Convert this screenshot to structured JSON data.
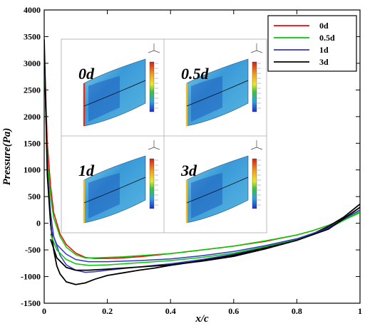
{
  "chart_data": {
    "type": "line",
    "xlabel": "x/c",
    "ylabel": "Pressure(Pa)",
    "xlim": [
      0,
      1
    ],
    "ylim": [
      -1500,
      4000
    ],
    "xticks": [
      "0",
      "0.2",
      "0.4",
      "0.6",
      "0.8",
      "1"
    ],
    "yticks": [
      "-1500",
      "-1000",
      "-500",
      "0",
      "500",
      "1000",
      "1500",
      "2000",
      "2500",
      "3000",
      "3500",
      "4000"
    ],
    "legend_position": "top-right",
    "series": [
      {
        "name": "0d",
        "color": "#ff0000",
        "x": [
          0.0,
          0.01,
          0.02,
          0.03,
          0.05,
          0.07,
          0.1,
          0.13,
          0.16,
          0.2,
          0.25,
          0.3,
          0.35,
          0.4,
          0.5,
          0.6,
          0.7,
          0.8,
          0.85,
          0.9,
          0.95,
          1.0
        ],
        "y": [
          3300,
          1500,
          700,
          200,
          -200,
          -400,
          -560,
          -640,
          -660,
          -660,
          -650,
          -630,
          -600,
          -570,
          -500,
          -430,
          -340,
          -220,
          -140,
          -40,
          80,
          250
        ]
      },
      {
        "name": "0.5d",
        "color": "#00cc00",
        "x": [
          0.0,
          0.01,
          0.02,
          0.03,
          0.05,
          0.07,
          0.1,
          0.13,
          0.16,
          0.2,
          0.25,
          0.3,
          0.35,
          0.4,
          0.5,
          0.6,
          0.7,
          0.8,
          0.85,
          0.9,
          0.95,
          1.0
        ],
        "y": [
          3000,
          1200,
          500,
          100,
          -250,
          -450,
          -590,
          -650,
          -650,
          -640,
          -630,
          -610,
          -590,
          -570,
          -500,
          -430,
          -330,
          -220,
          -140,
          -40,
          60,
          200
        ]
      },
      {
        "name": "1d",
        "color": "#3333cc",
        "x": [
          0.0,
          0.01,
          0.02,
          0.03,
          0.05,
          0.07,
          0.1,
          0.13,
          0.16,
          0.2,
          0.25,
          0.3,
          0.35,
          0.4,
          0.5,
          0.6,
          0.7,
          0.8,
          0.85,
          0.9,
          0.95,
          1.0
        ],
        "y": [
          3200,
          1000,
          200,
          -250,
          -600,
          -780,
          -880,
          -920,
          -910,
          -880,
          -850,
          -820,
          -790,
          -760,
          -680,
          -580,
          -450,
          -300,
          -200,
          -80,
          80,
          300
        ]
      },
      {
        "name": "3d",
        "color": "#000000",
        "x": [
          0.0,
          0.01,
          0.02,
          0.03,
          0.04,
          0.05,
          0.07,
          0.1,
          0.13,
          0.16,
          0.2,
          0.25,
          0.3,
          0.35,
          0.4,
          0.5,
          0.6,
          0.7,
          0.8,
          0.85,
          0.9,
          0.95,
          1.0
        ],
        "y": [
          3450,
          900,
          0,
          -500,
          -800,
          -950,
          -1100,
          -1150,
          -1120,
          -1050,
          -980,
          -930,
          -880,
          -840,
          -790,
          -700,
          -600,
          -460,
          -300,
          -200,
          -60,
          120,
          360
        ]
      },
      {
        "name": "",
        "color": "#00cc00",
        "x": [
          0.02,
          0.04,
          0.07,
          0.1,
          0.14,
          0.2,
          0.3,
          0.4,
          0.5,
          0.6,
          0.7,
          0.8,
          0.9,
          1.0
        ],
        "y": [
          -200,
          -500,
          -680,
          -760,
          -790,
          -780,
          -740,
          -700,
          -640,
          -560,
          -440,
          -300,
          -100,
          220
        ]
      },
      {
        "name": "",
        "color": "#3333cc",
        "x": [
          0.02,
          0.04,
          0.07,
          0.1,
          0.14,
          0.2,
          0.3,
          0.4,
          0.5,
          0.6,
          0.7,
          0.8,
          0.9,
          1.0
        ],
        "y": [
          -100,
          -400,
          -580,
          -680,
          -720,
          -720,
          -700,
          -670,
          -610,
          -530,
          -420,
          -290,
          -90,
          250
        ]
      },
      {
        "name": "",
        "color": "#000000",
        "x": [
          0.02,
          0.04,
          0.07,
          0.1,
          0.14,
          0.2,
          0.3,
          0.4,
          0.5,
          0.6,
          0.7,
          0.8,
          0.9,
          1.0
        ],
        "y": [
          -300,
          -650,
          -830,
          -880,
          -880,
          -860,
          -820,
          -780,
          -710,
          -620,
          -480,
          -320,
          -110,
          300
        ]
      }
    ],
    "inset_panels": [
      "0d",
      "0.5d",
      "1d",
      "3d"
    ]
  },
  "colors": {
    "axis": "#000000",
    "inset_border": "#aaaaaa",
    "surface_main": "#2f8fd0",
    "surface_dark": "#1d5fc0",
    "surface_light": "#8fd4e8"
  }
}
